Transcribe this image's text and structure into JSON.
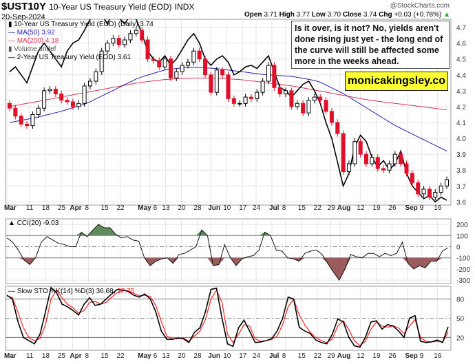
{
  "header": {
    "symbol": "$UST10Y",
    "name": "10-Year US Treasury Yield (EOD)",
    "exchange": "INDX",
    "date": "20-Sep-2024",
    "brand": "@StockCharts.com",
    "open_label": "Open",
    "open": "3.71",
    "high_label": "High",
    "high": "3.77",
    "low_label": "Low",
    "low": "3.70",
    "close_label": "Close",
    "close": "3.74",
    "chg_label": "Chg",
    "chg": "+0.03 (+0.78%)"
  },
  "legend": {
    "main": "10-Year US Treasury Yield (EOD) (Daily) 3.74",
    "ma50": "MA(50) 3.92",
    "ma200": "MA(200) 4.18",
    "volume": "Volume undef",
    "y2": "2-Year US Treasury Yield (EOD) 3.61",
    "cci": "CCI(20) -9.03",
    "sto": "Slow STO %K(14) %D(3) 36.68,",
    "sto_d": "27.75"
  },
  "annotation": {
    "text": "Is it over, is it not? No, yields aren't done rising just yet - the long end of the curve will still be affected some more in the weeks ahead.",
    "site": "monicakingsley.co"
  },
  "colors": {
    "up": "#000000",
    "down": "#e0102a",
    "ma50": "#2222aa",
    "ma200": "#e03050",
    "cci_pos": "#5e8c5e",
    "cci_neg": "#9c5c5c",
    "sto_d": "#ff2020"
  },
  "chart_data": [
    {
      "type": "candlestick",
      "title": "10-Year US Treasury Yield (EOD)",
      "ylim": [
        3.58,
        4.75
      ],
      "yticks": [
        3.6,
        3.7,
        3.8,
        3.9,
        4.0,
        4.1,
        4.2,
        4.3,
        4.4,
        4.5,
        4.6,
        4.7
      ],
      "x_labels": [
        {
          "t": "Mar",
          "i": 0,
          "b": true
        },
        {
          "t": "11",
          "i": 5
        },
        {
          "t": "18",
          "i": 8.5
        },
        {
          "t": "25",
          "i": 12
        },
        {
          "t": "Apr",
          "i": 14.5,
          "b": true
        },
        {
          "t": "8",
          "i": 18
        },
        {
          "t": "15",
          "i": 21.5
        },
        {
          "t": "22",
          "i": 25
        },
        {
          "t": "May",
          "i": 29.5,
          "b": true
        },
        {
          "t": "6",
          "i": 31.5
        },
        {
          "t": "13",
          "i": 35
        },
        {
          "t": "20",
          "i": 38.5
        },
        {
          "t": "28",
          "i": 42
        },
        {
          "t": "Jun",
          "i": 45,
          "b": true
        },
        {
          "t": "10",
          "i": 48.5
        },
        {
          "t": "17",
          "i": 52
        },
        {
          "t": "24",
          "i": 55
        },
        {
          "t": "Jul",
          "i": 58.5,
          "b": true
        },
        {
          "t": "8",
          "i": 61.5
        },
        {
          "t": "15",
          "i": 65
        },
        {
          "t": "22",
          "i": 68.5
        },
        {
          "t": "29",
          "i": 71.5
        },
        {
          "t": "Aug",
          "i": 73.5,
          "b": true
        },
        {
          "t": "12",
          "i": 78
        },
        {
          "t": "19",
          "i": 81.5
        },
        {
          "t": "26",
          "i": 85
        },
        {
          "t": "Sep",
          "i": 88.5,
          "b": true
        },
        {
          "t": "9",
          "i": 91.5
        },
        {
          "t": "16",
          "i": 95
        }
      ],
      "close": [
        4.19,
        4.14,
        4.09,
        4.08,
        4.15,
        4.19,
        4.3,
        4.31,
        4.28,
        4.24,
        4.23,
        4.2,
        4.22,
        4.33,
        4.36,
        4.42,
        4.55,
        4.6,
        4.63,
        4.59,
        4.62,
        4.66,
        4.68,
        4.62,
        4.5,
        4.49,
        4.45,
        4.5,
        4.38,
        4.42,
        4.46,
        4.48,
        4.55,
        4.5,
        4.4,
        4.29,
        4.43,
        4.4,
        4.25,
        4.22,
        4.22,
        4.26,
        4.25,
        4.29,
        4.36,
        4.46,
        4.32,
        4.28,
        4.3,
        4.2,
        4.22,
        4.16,
        4.24,
        4.26,
        4.24,
        4.17,
        4.1,
        4.03,
        3.79,
        3.84,
        3.98,
        3.9,
        3.84,
        3.88,
        3.81,
        3.8,
        3.84,
        3.9,
        3.84,
        3.78,
        3.72,
        3.65,
        3.68,
        3.63,
        3.66,
        3.7,
        3.74
      ],
      "y2": [
        4.42,
        4.45,
        4.4,
        4.35,
        4.45,
        4.55,
        4.6,
        4.55,
        4.5,
        4.45,
        4.55,
        4.6,
        4.62,
        4.68,
        4.75,
        4.8,
        4.78,
        4.72,
        4.8,
        4.76,
        4.72,
        4.78,
        4.75,
        4.66,
        4.55,
        4.5,
        4.48,
        4.52,
        4.46,
        4.5,
        4.56,
        4.62,
        4.66,
        4.6,
        4.5,
        4.46,
        4.5,
        4.52,
        4.48,
        4.4,
        4.42,
        4.45,
        4.46,
        4.44,
        4.48,
        4.52,
        4.42,
        4.32,
        4.3,
        4.26,
        4.3,
        4.34,
        4.36,
        4.3,
        4.22,
        4.1,
        4.0,
        3.85,
        3.7,
        3.78,
        3.95,
        4.02,
        3.98,
        3.88,
        3.82,
        3.86,
        3.8,
        3.84,
        3.92,
        3.78,
        3.7,
        3.66,
        3.62,
        3.64,
        3.6,
        3.63,
        3.61
      ],
      "ma50": [
        4.1,
        4.13,
        4.17,
        4.22,
        4.3,
        4.38,
        4.43,
        4.45,
        4.44,
        4.42,
        4.4,
        4.39,
        4.36,
        4.28,
        4.18,
        4.08,
        4.0,
        3.92
      ],
      "ma200": [
        4.2,
        4.23,
        4.26,
        4.29,
        4.32,
        4.35,
        4.37,
        4.38,
        4.38,
        4.37,
        4.35,
        4.33,
        4.3,
        4.27,
        4.24,
        4.22,
        4.2,
        4.18
      ]
    },
    {
      "type": "line",
      "title": "CCI(20)",
      "ylim": [
        -330,
        250
      ],
      "yticks": [
        -300,
        -200,
        -100,
        0,
        100,
        200
      ],
      "values": [
        80,
        40,
        -30,
        -120,
        -160,
        -100,
        40,
        90,
        60,
        30,
        20,
        0,
        0,
        130,
        90,
        150,
        200,
        170,
        170,
        110,
        80,
        90,
        60,
        50,
        -100,
        -170,
        -130,
        -110,
        -100,
        -150,
        -70,
        -60,
        -30,
        0,
        150,
        100,
        -170,
        -160,
        20,
        -100,
        -170,
        -110,
        -90,
        -80,
        -30,
        130,
        100,
        -30,
        -40,
        -100,
        -110,
        -130,
        -60,
        -40,
        -30,
        -70,
        -150,
        -230,
        -300,
        -200,
        -70,
        -90,
        -100,
        -60,
        -60,
        -90,
        -60,
        -80,
        -60,
        40,
        -150,
        -200,
        -170,
        -190,
        -130,
        -130,
        -40,
        -9
      ]
    },
    {
      "type": "line",
      "title": "Slow STO",
      "ylim": [
        0,
        100
      ],
      "yticks": [
        20,
        50,
        80
      ],
      "k": [
        86,
        80,
        45,
        20,
        15,
        10,
        25,
        60,
        98,
        90,
        72,
        68,
        62,
        55,
        72,
        82,
        70,
        72,
        80,
        88,
        95,
        94,
        92,
        86,
        83,
        88,
        80,
        60,
        30,
        17,
        17,
        19,
        18,
        12,
        28,
        35,
        60,
        95,
        97,
        50,
        10,
        6,
        35,
        47,
        30,
        12,
        13,
        15,
        18,
        30,
        50,
        83,
        80,
        36,
        30,
        26,
        16,
        12,
        10,
        25,
        49,
        44,
        20,
        7,
        5,
        20,
        44,
        46,
        33,
        40,
        38,
        30,
        20,
        50,
        54,
        14,
        12,
        13,
        16,
        12,
        36.68
      ],
      "d": [
        85,
        82,
        60,
        35,
        20,
        15,
        18,
        40,
        80,
        94,
        82,
        72,
        66,
        58,
        62,
        75,
        76,
        72,
        75,
        83,
        90,
        93,
        93,
        89,
        85,
        86,
        84,
        70,
        45,
        22,
        18,
        18,
        19,
        14,
        22,
        30,
        48,
        80,
        94,
        75,
        25,
        12,
        25,
        40,
        38,
        18,
        14,
        15,
        17,
        22,
        40,
        68,
        80,
        55,
        40,
        28,
        20,
        15,
        12,
        18,
        38,
        46,
        32,
        15,
        7,
        14,
        33,
        44,
        38,
        36,
        38,
        35,
        26,
        38,
        48,
        20,
        14,
        13,
        14,
        13,
        27.75
      ]
    }
  ]
}
